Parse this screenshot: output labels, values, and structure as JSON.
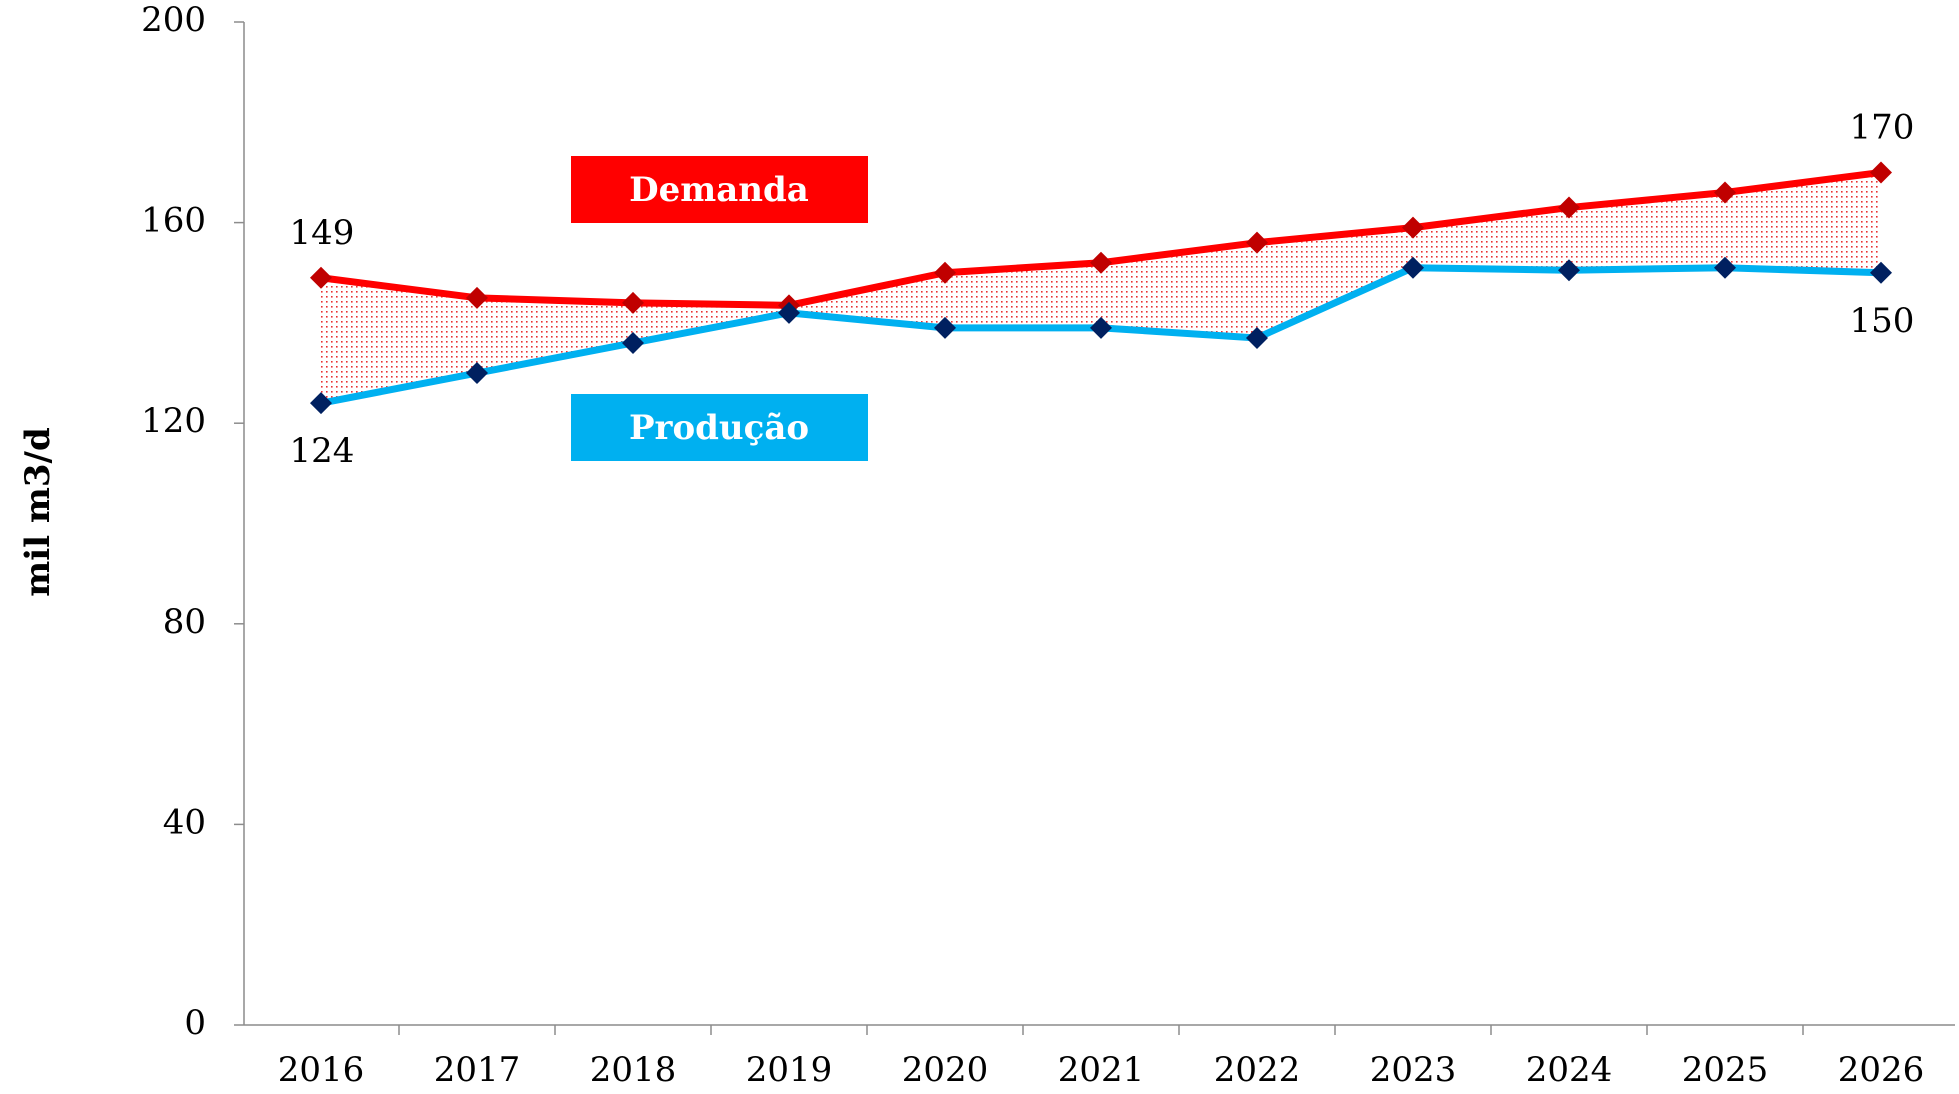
{
  "chart_data": {
    "type": "line",
    "y_label": "mil m3/d",
    "categories": [
      "2016",
      "2017",
      "2018",
      "2019",
      "2020",
      "2021",
      "2022",
      "2023",
      "2024",
      "2025",
      "2026"
    ],
    "series": [
      {
        "name": "Demanda",
        "color": "#ff0000",
        "marker_color": "#c00000",
        "values": [
          149,
          145,
          144,
          143.5,
          150,
          152,
          156,
          159,
          163,
          166,
          170
        ]
      },
      {
        "name": "Produção",
        "color": "#00b0f0",
        "marker_color": "#002060",
        "values": [
          124,
          130,
          136,
          142,
          139,
          139,
          137,
          151,
          150.5,
          151,
          150
        ]
      }
    ],
    "data_labels_at": [
      0,
      10
    ],
    "fill_between": true,
    "ylim": [
      0,
      200
    ],
    "yticks": [
      0,
      40,
      80,
      120,
      160,
      200
    ],
    "grid": false
  }
}
